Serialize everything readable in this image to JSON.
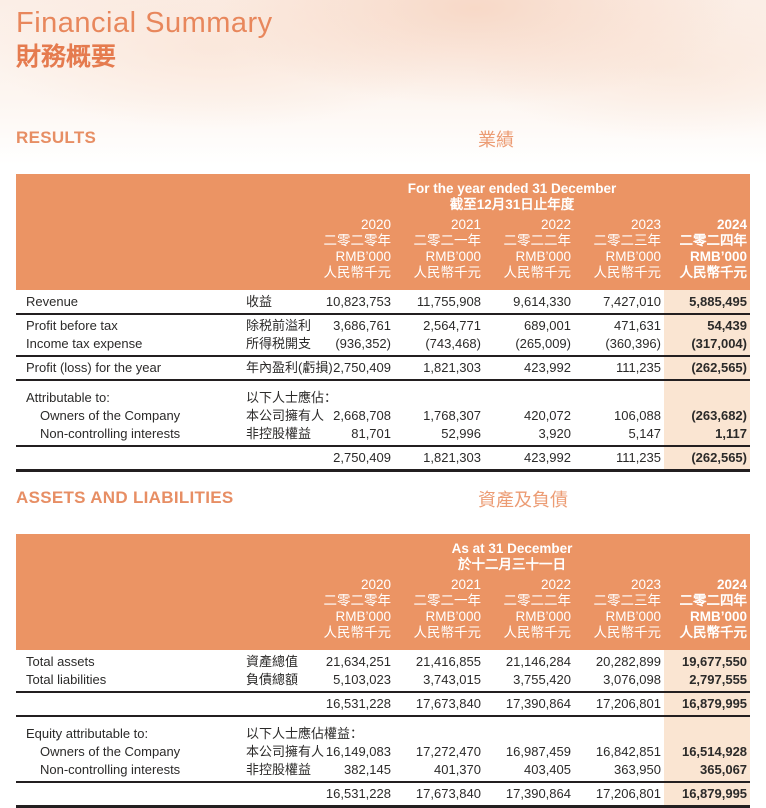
{
  "page": {
    "title_en": "Financial Summary",
    "title_zh": "財務概要"
  },
  "colors": {
    "accent_orange": "#EB9464",
    "heading_orange": "#E78E64",
    "title_orange": "#E8875C",
    "highlight_column": "#FAE5D2",
    "rule_black": "#231F20",
    "header_text": "#FFFFFF",
    "page_top_tint": "#FBEEE6"
  },
  "results": {
    "heading_en": "RESULTS",
    "heading_zh": "業績",
    "table": {
      "band_line1": "For the year ended 31 December",
      "band_line2": "截至12月31日止年度",
      "columns": [
        {
          "year": "2020",
          "year_zh": "二零二零年",
          "unit": "RMB’000",
          "unit_zh": "人民幣千元",
          "emphasis": false
        },
        {
          "year": "2021",
          "year_zh": "二零二一年",
          "unit": "RMB’000",
          "unit_zh": "人民幣千元",
          "emphasis": false
        },
        {
          "year": "2022",
          "year_zh": "二零二二年",
          "unit": "RMB’000",
          "unit_zh": "人民幣千元",
          "emphasis": false
        },
        {
          "year": "2023",
          "year_zh": "二零二三年",
          "unit": "RMB’000",
          "unit_zh": "人民幣千元",
          "emphasis": false
        },
        {
          "year": "2024",
          "year_zh": "二零二四年",
          "unit": "RMB’000",
          "unit_zh": "人民幣千元",
          "emphasis": true
        }
      ],
      "rows": [
        {
          "en": "Revenue",
          "zh": "收益",
          "values": [
            "10,823,753",
            "11,755,908",
            "9,614,330",
            "7,427,010",
            "5,885,495"
          ],
          "rule": "thick"
        },
        {
          "en": "Profit before tax",
          "zh": "除税前溢利",
          "values": [
            "3,686,761",
            "2,564,771",
            "689,001",
            "471,631",
            "54,439"
          ],
          "rule": "none"
        },
        {
          "en": "Income tax expense",
          "zh": "所得税開支",
          "values": [
            "(936,352)",
            "(743,468)",
            "(265,009)",
            "(360,396)",
            "(317,004)"
          ],
          "rule": "thick"
        },
        {
          "en": "Profit (loss) for the year",
          "zh": "年內盈利(虧損)",
          "values": [
            "2,750,409",
            "1,821,303",
            "423,992",
            "111,235",
            "(262,565)"
          ],
          "rule": "thick"
        },
        {
          "en": "Attributable to:",
          "zh": "以下人士應佔：",
          "values": [
            "",
            "",
            "",
            "",
            ""
          ],
          "rule": "none",
          "gap_before": true
        },
        {
          "en": "Owners of the Company",
          "zh": "本公司擁有人",
          "values": [
            "2,668,708",
            "1,768,307",
            "420,072",
            "106,088",
            "(263,682)"
          ],
          "rule": "none",
          "indent": true
        },
        {
          "en": "Non-controlling interests",
          "zh": "非控股權益",
          "values": [
            "81,701",
            "52,996",
            "3,920",
            "5,147",
            "1,117"
          ],
          "rule": "thick",
          "indent": true
        },
        {
          "en": "",
          "zh": "",
          "values": [
            "2,750,409",
            "1,821,303",
            "423,992",
            "111,235",
            "(262,565)"
          ],
          "rule": "final"
        }
      ]
    }
  },
  "assets": {
    "heading_en": "ASSETS AND LIABILITIES",
    "heading_zh": "資產及負債",
    "table": {
      "band_line1": "As at 31 December",
      "band_line2": "於十二月三十一日",
      "columns": [
        {
          "year": "2020",
          "year_zh": "二零二零年",
          "unit": "RMB’000",
          "unit_zh": "人民幣千元",
          "emphasis": false
        },
        {
          "year": "2021",
          "year_zh": "二零二一年",
          "unit": "RMB’000",
          "unit_zh": "人民幣千元",
          "emphasis": false
        },
        {
          "year": "2022",
          "year_zh": "二零二二年",
          "unit": "RMB’000",
          "unit_zh": "人民幣千元",
          "emphasis": false
        },
        {
          "year": "2023",
          "year_zh": "二零二三年",
          "unit": "RMB’000",
          "unit_zh": "人民幣千元",
          "emphasis": false
        },
        {
          "year": "2024",
          "year_zh": "二零二四年",
          "unit": "RMB’000",
          "unit_zh": "人民幣千元",
          "emphasis": true
        }
      ],
      "rows": [
        {
          "en": "Total assets",
          "zh": "資產總值",
          "values": [
            "21,634,251",
            "21,416,855",
            "21,146,284",
            "20,282,899",
            "19,677,550"
          ],
          "rule": "none"
        },
        {
          "en": "Total liabilities",
          "zh": "負債總額",
          "values": [
            "5,103,023",
            "3,743,015",
            "3,755,420",
            "3,076,098",
            "2,797,555"
          ],
          "rule": "thick"
        },
        {
          "en": "",
          "zh": "",
          "values": [
            "16,531,228",
            "17,673,840",
            "17,390,864",
            "17,206,801",
            "16,879,995"
          ],
          "rule": "thick"
        },
        {
          "en": "Equity attributable to:",
          "zh": "以下人士應佔權益：",
          "values": [
            "",
            "",
            "",
            "",
            ""
          ],
          "rule": "none",
          "gap_before": true
        },
        {
          "en": "Owners of the Company",
          "zh": "本公司擁有人",
          "values": [
            "16,149,083",
            "17,272,470",
            "16,987,459",
            "16,842,851",
            "16,514,928"
          ],
          "rule": "none",
          "indent": true
        },
        {
          "en": "Non-controlling interests",
          "zh": "非控股權益",
          "values": [
            "382,145",
            "401,370",
            "403,405",
            "363,950",
            "365,067"
          ],
          "rule": "thick",
          "indent": true
        },
        {
          "en": "",
          "zh": "",
          "values": [
            "16,531,228",
            "17,673,840",
            "17,390,864",
            "17,206,801",
            "16,879,995"
          ],
          "rule": "final"
        }
      ]
    }
  }
}
